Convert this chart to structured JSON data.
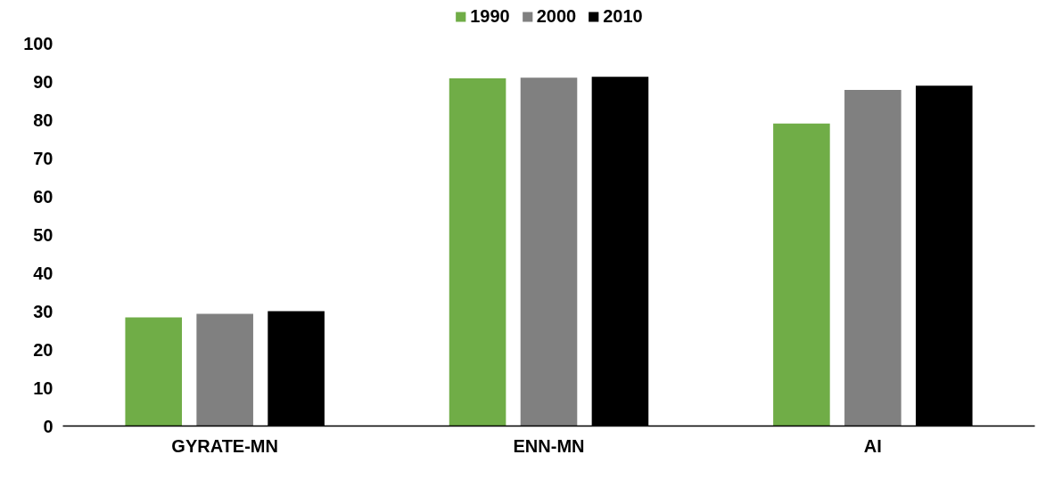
{
  "chart_data": {
    "type": "bar",
    "categories": [
      "GYRATE-MN",
      "ENN-MN",
      "AI"
    ],
    "series": [
      {
        "name": "1990",
        "color": "#70ad47",
        "values": [
          28.4,
          90.8,
          79.0
        ]
      },
      {
        "name": "2000",
        "color": "#808080",
        "values": [
          29.3,
          91.0,
          87.8
        ]
      },
      {
        "name": "2010",
        "color": "#000000",
        "values": [
          30.0,
          91.2,
          88.9
        ]
      }
    ],
    "ylim": [
      0,
      100
    ],
    "yticks": [
      0,
      10,
      20,
      30,
      40,
      50,
      60,
      70,
      80,
      90,
      100
    ],
    "grid": false,
    "legend": "top"
  }
}
